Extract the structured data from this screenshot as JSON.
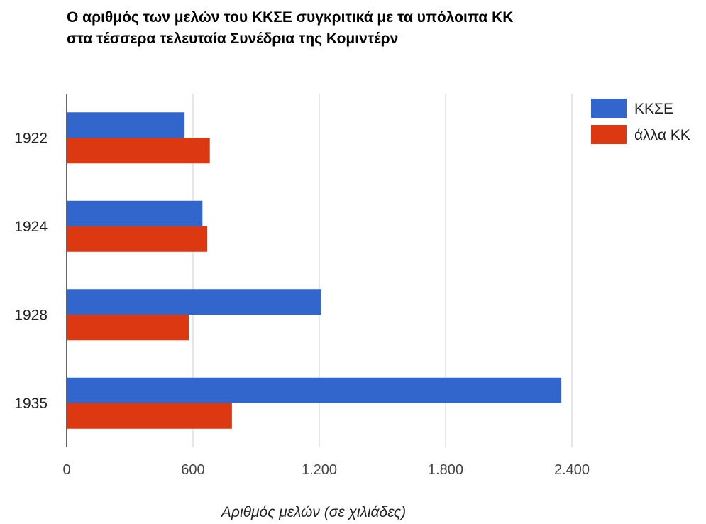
{
  "chart_data": {
    "type": "bar",
    "orientation": "horizontal",
    "title": "Ο αριθμός των μελών του ΚΚΣΕ συγκριτικά με τα υπόλοιπα ΚΚ στα τέσσερα τελευταία Συνέδρια της Κομιντέρν",
    "categories": [
      "1922",
      "1924",
      "1928",
      "1935"
    ],
    "series": [
      {
        "name": "ΚΚΣΕ",
        "color": "#3366cc",
        "values": [
          560,
          645,
          1210,
          2350
        ]
      },
      {
        "name": "άλλα ΚΚ",
        "color": "#dc3912",
        "values": [
          680,
          668,
          580,
          785
        ]
      }
    ],
    "xlabel": "Αριθμός μελών (σε χιλιάδες)",
    "ylabel": "",
    "xlim": [
      0,
      2400
    ],
    "xticks": [
      0,
      600,
      1200,
      1800,
      2400
    ],
    "xtick_labels": [
      "0",
      "600",
      "1.200",
      "1.800",
      "2.400"
    ],
    "grid": true,
    "legend_position": "right"
  }
}
